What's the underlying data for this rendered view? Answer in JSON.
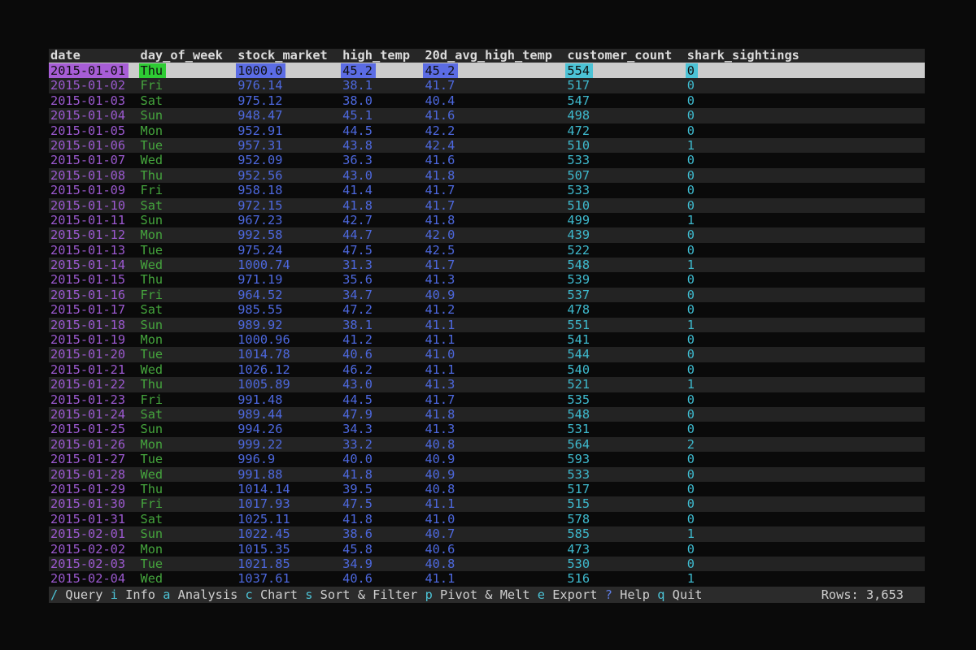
{
  "colors": {
    "background": "#0a0a0a",
    "stripe_row_bg": "#232323",
    "selected_row_bg": "#cccccc",
    "header_bg": "#262626",
    "header_text": "#dcdcdc",
    "status_bar_bg": "#2b2b2b",
    "status_bar_text": "#cfcfcf",
    "date_text": "#9b59cf",
    "day_text": "#45a53d",
    "number_blue_text": "#4d68de",
    "number_cyan_text": "#3eb9cd",
    "selected_cell_date_bg": "#a75dd6",
    "selected_cell_day_bg": "#2ecc34",
    "selected_cell_blue_bg": "#5b6ce4",
    "selected_cell_cyan_bg": "#4cc3d6"
  },
  "table": {
    "columns": [
      {
        "label": "date"
      },
      {
        "label": "day_of_week"
      },
      {
        "label": "stock_market"
      },
      {
        "label": "high_temp"
      },
      {
        "label": "20d_avg_high_temp"
      },
      {
        "label": "customer_count"
      },
      {
        "label": "shark_sightings"
      }
    ],
    "selected_row_index": 0,
    "rows": [
      [
        "2015-01-01",
        "Thu",
        "1000.0",
        "45.2",
        "45.2",
        "554",
        "0"
      ],
      [
        "2015-01-02",
        "Fri",
        "976.14",
        "38.1",
        "41.7",
        "517",
        "0"
      ],
      [
        "2015-01-03",
        "Sat",
        "975.12",
        "38.0",
        "40.4",
        "547",
        "0"
      ],
      [
        "2015-01-04",
        "Sun",
        "948.47",
        "45.1",
        "41.6",
        "498",
        "0"
      ],
      [
        "2015-01-05",
        "Mon",
        "952.91",
        "44.5",
        "42.2",
        "472",
        "0"
      ],
      [
        "2015-01-06",
        "Tue",
        "957.31",
        "43.8",
        "42.4",
        "510",
        "1"
      ],
      [
        "2015-01-07",
        "Wed",
        "952.09",
        "36.3",
        "41.6",
        "533",
        "0"
      ],
      [
        "2015-01-08",
        "Thu",
        "952.56",
        "43.0",
        "41.8",
        "507",
        "0"
      ],
      [
        "2015-01-09",
        "Fri",
        "958.18",
        "41.4",
        "41.7",
        "533",
        "0"
      ],
      [
        "2015-01-10",
        "Sat",
        "972.15",
        "41.8",
        "41.7",
        "510",
        "0"
      ],
      [
        "2015-01-11",
        "Sun",
        "967.23",
        "42.7",
        "41.8",
        "499",
        "1"
      ],
      [
        "2015-01-12",
        "Mon",
        "992.58",
        "44.7",
        "42.0",
        "439",
        "0"
      ],
      [
        "2015-01-13",
        "Tue",
        "975.24",
        "47.5",
        "42.5",
        "522",
        "0"
      ],
      [
        "2015-01-14",
        "Wed",
        "1000.74",
        "31.3",
        "41.7",
        "548",
        "1"
      ],
      [
        "2015-01-15",
        "Thu",
        "971.19",
        "35.6",
        "41.3",
        "539",
        "0"
      ],
      [
        "2015-01-16",
        "Fri",
        "964.52",
        "34.7",
        "40.9",
        "537",
        "0"
      ],
      [
        "2015-01-17",
        "Sat",
        "985.55",
        "47.2",
        "41.2",
        "478",
        "0"
      ],
      [
        "2015-01-18",
        "Sun",
        "989.92",
        "38.1",
        "41.1",
        "551",
        "1"
      ],
      [
        "2015-01-19",
        "Mon",
        "1000.96",
        "41.2",
        "41.1",
        "541",
        "0"
      ],
      [
        "2015-01-20",
        "Tue",
        "1014.78",
        "40.6",
        "41.0",
        "544",
        "0"
      ],
      [
        "2015-01-21",
        "Wed",
        "1026.12",
        "46.2",
        "41.1",
        "540",
        "0"
      ],
      [
        "2015-01-22",
        "Thu",
        "1005.89",
        "43.0",
        "41.3",
        "521",
        "1"
      ],
      [
        "2015-01-23",
        "Fri",
        "991.48",
        "44.5",
        "41.7",
        "535",
        "0"
      ],
      [
        "2015-01-24",
        "Sat",
        "989.44",
        "47.9",
        "41.8",
        "548",
        "0"
      ],
      [
        "2015-01-25",
        "Sun",
        "994.26",
        "34.3",
        "41.3",
        "531",
        "0"
      ],
      [
        "2015-01-26",
        "Mon",
        "999.22",
        "33.2",
        "40.8",
        "564",
        "2"
      ],
      [
        "2015-01-27",
        "Tue",
        "996.9",
        "40.0",
        "40.9",
        "593",
        "0"
      ],
      [
        "2015-01-28",
        "Wed",
        "991.88",
        "41.8",
        "40.9",
        "533",
        "0"
      ],
      [
        "2015-01-29",
        "Thu",
        "1014.14",
        "39.5",
        "40.8",
        "517",
        "0"
      ],
      [
        "2015-01-30",
        "Fri",
        "1017.93",
        "47.5",
        "41.1",
        "515",
        "0"
      ],
      [
        "2015-01-31",
        "Sat",
        "1025.11",
        "41.8",
        "41.0",
        "578",
        "0"
      ],
      [
        "2015-02-01",
        "Sun",
        "1022.45",
        "38.6",
        "40.7",
        "585",
        "1"
      ],
      [
        "2015-02-02",
        "Mon",
        "1015.35",
        "45.8",
        "40.6",
        "473",
        "0"
      ],
      [
        "2015-02-03",
        "Tue",
        "1021.85",
        "34.9",
        "40.8",
        "530",
        "0"
      ],
      [
        "2015-02-04",
        "Wed",
        "1037.61",
        "40.6",
        "41.1",
        "516",
        "1"
      ]
    ]
  },
  "status_bar": {
    "items": [
      {
        "id": "query",
        "key": "/",
        "label": "Query",
        "key_style": "cyan"
      },
      {
        "id": "info",
        "key": "i",
        "label": "Info",
        "key_style": "cyan"
      },
      {
        "id": "analysis",
        "key": "a",
        "label": "Analysis",
        "key_style": "cyan"
      },
      {
        "id": "chart",
        "key": "c",
        "label": "Chart",
        "key_style": "cyan"
      },
      {
        "id": "sort-filter",
        "key": "s",
        "label": "Sort & Filter",
        "key_style": "cyan"
      },
      {
        "id": "pivot-melt",
        "key": "p",
        "label": "Pivot & Melt",
        "key_style": "cyan"
      },
      {
        "id": "export",
        "key": "e",
        "label": "Export",
        "key_style": "cyan"
      },
      {
        "id": "help",
        "key": "?",
        "label": "Help",
        "key_style": "blue"
      },
      {
        "id": "quit",
        "key": "q",
        "label": "Quit",
        "key_style": "cyan"
      }
    ],
    "rows_text": "Rows: 3,653"
  }
}
